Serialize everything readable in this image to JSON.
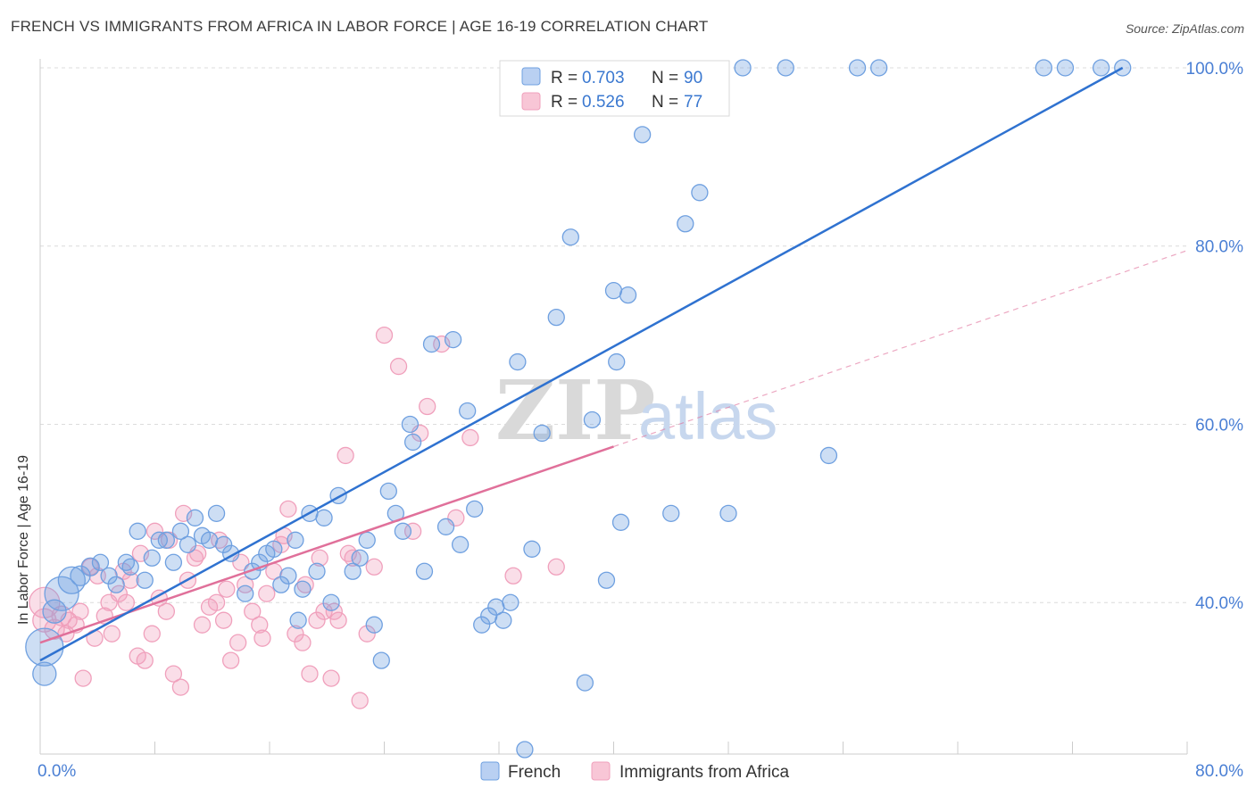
{
  "header": {
    "title": "FRENCH VS IMMIGRANTS FROM AFRICA IN LABOR FORCE | AGE 16-19 CORRELATION CHART",
    "source": "Source: ZipAtlas.com"
  },
  "watermark": {
    "part1": "ZIP",
    "part2": "atlas"
  },
  "chart_data": {
    "type": "scatter",
    "ylabel": "In Labor Force | Age 16-19",
    "xlim": [
      0,
      80
    ],
    "ylim": [
      23,
      102
    ],
    "x_tick_labels": [
      "0.0%",
      "80.0%"
    ],
    "y_ticks": [
      40,
      60,
      80,
      100
    ],
    "y_tick_labels": [
      "40.0%",
      "60.0%",
      "80.0%",
      "100.0%"
    ],
    "grid": true,
    "legend": {
      "placement": "top-center"
    },
    "stats": [
      {
        "r_label": "R =",
        "r": "0.703",
        "n_label": "N =",
        "n": "90"
      },
      {
        "r_label": "R =",
        "r": "0.526",
        "n_label": "N =",
        "n": "77"
      }
    ],
    "colors": {
      "french": "#6fa0e0",
      "french_line": "#2f72d0",
      "africa": "#f0a0bc",
      "africa_line": "#e0709a",
      "axis_text": "#4a7fd4"
    },
    "series": [
      {
        "name": "French",
        "trend": {
          "x": [
            0,
            75.5
          ],
          "y": [
            33.5,
            100
          ]
        },
        "points": [
          [
            0.3,
            35,
            22
          ],
          [
            0.3,
            32,
            14
          ],
          [
            1.5,
            41,
            20
          ],
          [
            2.2,
            42.5,
            16
          ],
          [
            1.0,
            39,
            14
          ],
          [
            2.8,
            43,
            12
          ],
          [
            3.5,
            44,
            11
          ],
          [
            4.2,
            44.5,
            10
          ],
          [
            4.8,
            43,
            10
          ],
          [
            5.3,
            42,
            10
          ],
          [
            6.0,
            44.5,
            10
          ],
          [
            6.3,
            44,
            10
          ],
          [
            6.8,
            48,
            10
          ],
          [
            7.3,
            42.5,
            10
          ],
          [
            7.8,
            45,
            10
          ],
          [
            8.3,
            47,
            10
          ],
          [
            8.8,
            47,
            10
          ],
          [
            9.3,
            44.5,
            10
          ],
          [
            9.8,
            48,
            10
          ],
          [
            10.3,
            46.5,
            10
          ],
          [
            10.8,
            49.5,
            10
          ],
          [
            11.3,
            47.5,
            10
          ],
          [
            11.8,
            47,
            10
          ],
          [
            12.3,
            50,
            10
          ],
          [
            12.8,
            46.5,
            10
          ],
          [
            13.3,
            45.5,
            10
          ],
          [
            14.3,
            41,
            10
          ],
          [
            14.8,
            43.5,
            10
          ],
          [
            15.3,
            44.5,
            10
          ],
          [
            15.8,
            45.5,
            10
          ],
          [
            16.3,
            46,
            10
          ],
          [
            16.8,
            42,
            10
          ],
          [
            17.3,
            43,
            10
          ],
          [
            17.8,
            47,
            10
          ],
          [
            18.3,
            41.5,
            10
          ],
          [
            18.8,
            50,
            10
          ],
          [
            19.3,
            43.5,
            10
          ],
          [
            19.8,
            49.5,
            10
          ],
          [
            20.3,
            40,
            10
          ],
          [
            20.8,
            52,
            10
          ],
          [
            21.8,
            43.5,
            10
          ],
          [
            22.3,
            45,
            10
          ],
          [
            22.8,
            47,
            10
          ],
          [
            23.3,
            37.5,
            10
          ],
          [
            23.8,
            33.5,
            10
          ],
          [
            24.3,
            52.5,
            10
          ],
          [
            24.8,
            50,
            10
          ],
          [
            25.3,
            48,
            10
          ],
          [
            25.8,
            60,
            10
          ],
          [
            26.8,
            43.5,
            10
          ],
          [
            27.3,
            69,
            10
          ],
          [
            28.3,
            48.5,
            10
          ],
          [
            28.8,
            69.5,
            10
          ],
          [
            29.3,
            46.5,
            10
          ],
          [
            29.8,
            61.5,
            10
          ],
          [
            30.3,
            50.5,
            10
          ],
          [
            30.8,
            37.5,
            10
          ],
          [
            31.3,
            38.5,
            10
          ],
          [
            31.8,
            39.5,
            10
          ],
          [
            32.3,
            38,
            10
          ],
          [
            32.8,
            40,
            10
          ],
          [
            33.3,
            67,
            10
          ],
          [
            33.8,
            23.5,
            10
          ],
          [
            34.3,
            46,
            10
          ],
          [
            35.0,
            59,
            10
          ],
          [
            36.0,
            72,
            10
          ],
          [
            37.0,
            81,
            10
          ],
          [
            38.0,
            31,
            10
          ],
          [
            38.5,
            60.5,
            10
          ],
          [
            39.5,
            42.5,
            10
          ],
          [
            40.0,
            75,
            10
          ],
          [
            40.5,
            49,
            10
          ],
          [
            41.0,
            74.5,
            10
          ],
          [
            42.0,
            92.5,
            10
          ],
          [
            44.0,
            50,
            10
          ],
          [
            45.0,
            82.5,
            10
          ],
          [
            46.0,
            86,
            10
          ],
          [
            48.0,
            50,
            10
          ],
          [
            49.0,
            100,
            10
          ],
          [
            52.0,
            100,
            10
          ],
          [
            55.0,
            56.5,
            10
          ],
          [
            57.0,
            100,
            10
          ],
          [
            58.5,
            100,
            10
          ],
          [
            70.0,
            100,
            10
          ],
          [
            71.5,
            100,
            10
          ],
          [
            74.0,
            100,
            10
          ],
          [
            75.5,
            100,
            10
          ],
          [
            40.2,
            67,
            10
          ],
          [
            26.0,
            58,
            10
          ],
          [
            18.0,
            38,
            10
          ]
        ]
      },
      {
        "name": "Immigrants from Africa",
        "trend": {
          "x": [
            0,
            40
          ],
          "y": [
            35.5,
            57.5
          ]
        },
        "trend_ext": {
          "x": [
            40,
            80
          ],
          "y": [
            57.5,
            79.5
          ]
        },
        "points": [
          [
            0.3,
            40,
            18
          ],
          [
            0.3,
            38,
            14
          ],
          [
            1.0,
            37,
            12
          ],
          [
            1.5,
            38.5,
            12
          ],
          [
            2.0,
            38,
            10
          ],
          [
            2.5,
            37.5,
            10
          ],
          [
            3.0,
            31.5,
            10
          ],
          [
            3.5,
            44,
            10
          ],
          [
            4.0,
            43,
            10
          ],
          [
            4.5,
            38.5,
            10
          ],
          [
            5.0,
            36.5,
            10
          ],
          [
            5.5,
            41,
            10
          ],
          [
            6.0,
            40,
            10
          ],
          [
            6.3,
            42.5,
            10
          ],
          [
            6.8,
            34,
            10
          ],
          [
            7.3,
            33.5,
            10
          ],
          [
            7.8,
            36.5,
            10
          ],
          [
            8.3,
            40.5,
            10
          ],
          [
            8.8,
            39,
            10
          ],
          [
            9.3,
            32,
            10
          ],
          [
            9.8,
            30.5,
            10
          ],
          [
            10.3,
            42.5,
            10
          ],
          [
            10.8,
            45,
            10
          ],
          [
            11.3,
            37.5,
            10
          ],
          [
            11.8,
            39.5,
            10
          ],
          [
            12.3,
            40,
            10
          ],
          [
            12.8,
            38,
            10
          ],
          [
            13.3,
            33.5,
            10
          ],
          [
            13.8,
            35.5,
            10
          ],
          [
            14.3,
            42,
            10
          ],
          [
            14.8,
            39,
            10
          ],
          [
            15.3,
            37.5,
            10
          ],
          [
            15.8,
            41,
            10
          ],
          [
            16.3,
            43.5,
            10
          ],
          [
            16.8,
            46.5,
            10
          ],
          [
            17.3,
            50.5,
            10
          ],
          [
            17.8,
            36.5,
            10
          ],
          [
            18.3,
            35.5,
            10
          ],
          [
            18.8,
            32,
            10
          ],
          [
            19.3,
            38,
            10
          ],
          [
            19.8,
            39,
            10
          ],
          [
            20.3,
            31.5,
            10
          ],
          [
            20.8,
            38,
            10
          ],
          [
            21.3,
            56.5,
            10
          ],
          [
            21.8,
            45,
            10
          ],
          [
            22.3,
            29,
            10
          ],
          [
            22.8,
            36.5,
            10
          ],
          [
            23.3,
            44,
            10
          ],
          [
            24.0,
            70,
            10
          ],
          [
            25.0,
            66.5,
            10
          ],
          [
            26.0,
            48,
            10
          ],
          [
            26.5,
            59,
            10
          ],
          [
            27.0,
            62,
            10
          ],
          [
            28.0,
            69,
            10
          ],
          [
            29.0,
            49.5,
            10
          ],
          [
            30.0,
            58.5,
            10
          ],
          [
            33.0,
            43,
            10
          ],
          [
            36.0,
            44,
            10
          ],
          [
            8.0,
            48,
            10
          ],
          [
            10.0,
            50,
            10
          ],
          [
            11.0,
            45.5,
            10
          ],
          [
            12.5,
            47,
            10
          ],
          [
            13.0,
            41.5,
            10
          ],
          [
            15.5,
            36,
            10
          ],
          [
            17.0,
            47.5,
            10
          ],
          [
            18.5,
            42,
            10
          ],
          [
            19.5,
            45,
            10
          ],
          [
            20.5,
            39,
            10
          ],
          [
            21.5,
            45.5,
            10
          ],
          [
            7.0,
            45.5,
            10
          ],
          [
            5.8,
            43.5,
            10
          ],
          [
            4.8,
            40,
            10
          ],
          [
            3.8,
            36,
            10
          ],
          [
            2.8,
            39,
            10
          ],
          [
            1.8,
            36.5,
            10
          ],
          [
            9.0,
            47,
            10
          ],
          [
            14.0,
            44.5,
            10
          ]
        ]
      }
    ]
  }
}
